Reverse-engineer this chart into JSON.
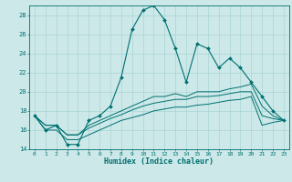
{
  "bg_color": "#cce8e8",
  "grid_color": "#aad4d4",
  "line_color": "#007070",
  "xlabel": "Humidex (Indice chaleur)",
  "x_values": [
    0,
    1,
    2,
    3,
    4,
    5,
    6,
    7,
    8,
    9,
    10,
    11,
    12,
    13,
    14,
    15,
    16,
    17,
    18,
    19,
    20,
    21,
    22,
    23
  ],
  "main_y": [
    17.5,
    16.0,
    16.5,
    14.5,
    14.5,
    17.0,
    17.5,
    18.5,
    21.5,
    26.5,
    28.5,
    29.0,
    27.5,
    24.5,
    21.0,
    25.0,
    24.5,
    22.5,
    23.5,
    22.5,
    21.0,
    19.5,
    18.0,
    17.0
  ],
  "line2_y": [
    17.5,
    16.5,
    16.5,
    15.5,
    15.5,
    16.5,
    17.0,
    17.5,
    18.0,
    18.5,
    19.0,
    19.5,
    19.5,
    19.8,
    19.5,
    20.0,
    20.0,
    20.0,
    20.3,
    20.5,
    20.8,
    18.5,
    17.5,
    17.0
  ],
  "line3_y": [
    17.5,
    16.5,
    16.5,
    15.5,
    15.5,
    16.2,
    16.7,
    17.2,
    17.6,
    18.1,
    18.5,
    18.8,
    19.0,
    19.2,
    19.2,
    19.5,
    19.5,
    19.6,
    19.8,
    20.0,
    20.0,
    17.5,
    17.2,
    17.0
  ],
  "line4_y": [
    17.5,
    16.0,
    16.0,
    15.0,
    15.0,
    15.5,
    16.0,
    16.5,
    17.0,
    17.3,
    17.6,
    18.0,
    18.2,
    18.4,
    18.4,
    18.6,
    18.7,
    18.9,
    19.1,
    19.2,
    19.5,
    16.5,
    16.8,
    17.0
  ],
  "ylim": [
    14,
    29
  ],
  "xlim": [
    -0.5,
    23.5
  ],
  "yticks": [
    14,
    16,
    18,
    20,
    22,
    24,
    26,
    28
  ],
  "xticks": [
    0,
    1,
    2,
    3,
    4,
    5,
    6,
    7,
    8,
    9,
    10,
    11,
    12,
    13,
    14,
    15,
    16,
    17,
    18,
    19,
    20,
    21,
    22,
    23
  ]
}
